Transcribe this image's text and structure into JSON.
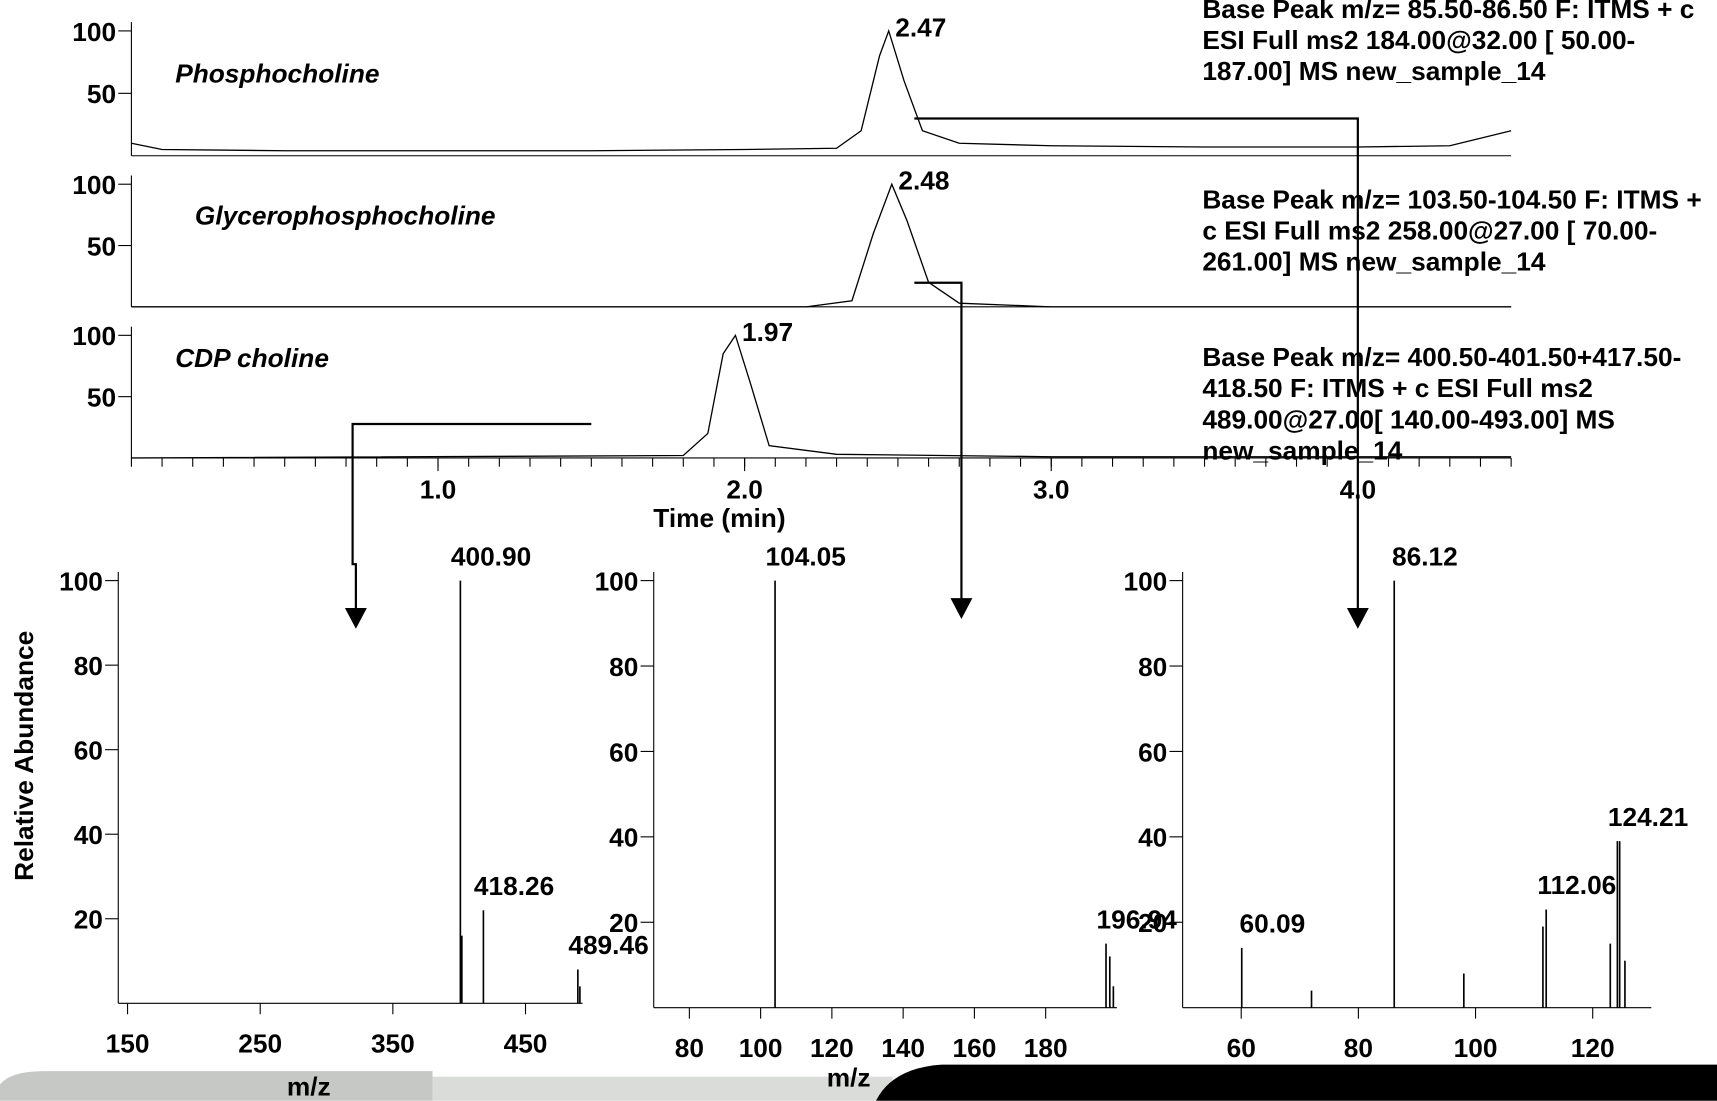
{
  "chart_data": [
    {
      "type": "line",
      "title": "Phosphocholine",
      "filter": [
        "Base Peak m/z= 85.50-86.50 F: ITMS + c",
        "ESI Full ms2 184.00@32.00 [ 50.00-",
        "187.00]  MS new_sample_14"
      ],
      "peak_time": 2.47,
      "x": [
        0,
        0.1,
        0.5,
        1,
        1.5,
        2,
        2.3,
        2.38,
        2.44,
        2.47,
        2.52,
        2.58,
        2.7,
        3,
        3.5,
        4,
        4.3,
        4.5
      ],
      "values": [
        10,
        5,
        4,
        4,
        4,
        5,
        6,
        20,
        80,
        100,
        60,
        20,
        10,
        8,
        7,
        7,
        8,
        20
      ],
      "color": "#000000",
      "xlim": [
        0,
        4.5
      ],
      "ylim": [
        0,
        100
      ],
      "yticks": [
        50,
        100
      ]
    },
    {
      "type": "line",
      "title": "Glycerophosphocholine",
      "filter": [
        "Base Peak m/z= 103.50-104.50 F: ITMS +",
        "c ESI Full ms2 258.00@27.00 [ 70.00-",
        "261.00]  MS new_sample_14"
      ],
      "peak_time": 2.48,
      "x": [
        0,
        2.2,
        2.35,
        2.42,
        2.48,
        2.53,
        2.6,
        2.7,
        3,
        4.5
      ],
      "values": [
        0,
        0,
        5,
        60,
        100,
        70,
        20,
        3,
        0,
        0
      ],
      "color": "#000000",
      "xlim": [
        0,
        4.5
      ],
      "ylim": [
        0,
        100
      ],
      "yticks": [
        50,
        100
      ]
    },
    {
      "type": "line",
      "title": "CDP choline",
      "filter": [
        "Base Peak m/z= 400.50-401.50+417.50-",
        "418.50 F: ITMS + c ESI Full ms2",
        "489.00@27.00[ 140.00-493.00]  MS",
        "new_sample_14"
      ],
      "peak_time": 1.97,
      "x": [
        0,
        1.8,
        1.88,
        1.93,
        1.97,
        2.02,
        2.08,
        2.3,
        3,
        4.5
      ],
      "values": [
        0,
        2,
        20,
        85,
        100,
        60,
        10,
        3,
        1,
        1
      ],
      "color": "#000000",
      "xlim": [
        0,
        4.5
      ],
      "ylim": [
        0,
        100
      ],
      "yticks": [
        50,
        100
      ],
      "xticks": [
        {
          "value": 1,
          "label": "1.0"
        },
        {
          "value": 2,
          "label": "2.0"
        },
        {
          "value": 3,
          "label": "3.0"
        },
        {
          "value": 4,
          "label": "4.0"
        }
      ],
      "xlabel": "Time (min)"
    },
    {
      "type": "bar",
      "ylabel": "Relative Abundance",
      "xlabel": "m/z",
      "x": [
        400.9,
        402,
        418.26,
        489.46,
        491
      ],
      "values": [
        100,
        16,
        22,
        8,
        4
      ],
      "peak_labels": [
        "400.90",
        null,
        "418.26",
        "489.46",
        null
      ],
      "color": "#000000",
      "xlim": [
        143,
        493
      ],
      "ylim": [
        0,
        100
      ],
      "yticks": [
        20,
        40,
        60,
        80,
        100
      ],
      "xticks": [
        150,
        250,
        350,
        450
      ]
    },
    {
      "type": "bar",
      "xlabel": "m/z",
      "x": [
        104.05,
        196.94,
        198,
        199
      ],
      "values": [
        100,
        15,
        12,
        5
      ],
      "peak_labels": [
        "104.05",
        "196.94",
        null,
        null
      ],
      "color": "#000000",
      "xlim": [
        70,
        200
      ],
      "ylim": [
        0,
        100
      ],
      "yticks": [
        20,
        40,
        60,
        80,
        100
      ],
      "xticks": [
        80,
        100,
        120,
        140,
        160,
        180
      ]
    },
    {
      "type": "bar",
      "x": [
        60.09,
        72,
        86.12,
        98,
        111.5,
        112.06,
        123,
        124.21,
        124.6,
        125.5
      ],
      "values": [
        14,
        4,
        100,
        8,
        19,
        23,
        15,
        39,
        39,
        11
      ],
      "peak_labels": [
        "60.09",
        null,
        "86.12",
        null,
        null,
        "112.06",
        null,
        "124.21",
        null,
        null
      ],
      "color": "#000000",
      "xlim": [
        50,
        130
      ],
      "ylim": [
        0,
        100
      ],
      "yticks": [
        20,
        40,
        60,
        80,
        100
      ],
      "xticks": [
        60,
        80,
        100,
        120
      ]
    }
  ]
}
